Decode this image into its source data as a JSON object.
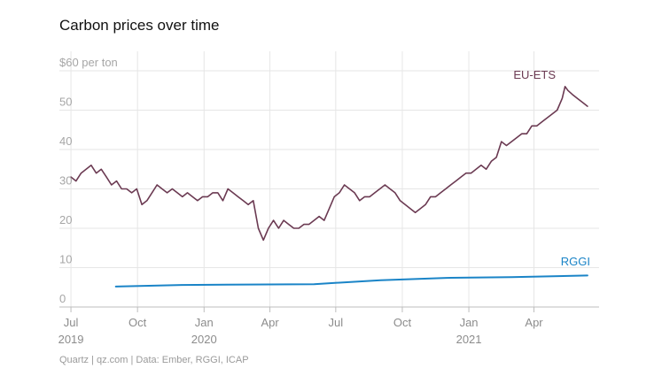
{
  "title": "Carbon prices over time",
  "footer": "Quartz | qz.com | Data: Ember, RGGI, ICAP",
  "colors": {
    "eu_ets": "#6b3a52",
    "rggi": "#1a84c7",
    "grid": "#e6e6e6"
  },
  "chart_data": {
    "type": "line",
    "title": "Carbon prices over time",
    "xlabel": "",
    "ylabel": "",
    "ylim": [
      0,
      60
    ],
    "xlim": [
      "2019-06-15",
      "2021-06-30"
    ],
    "grid": true,
    "y_ticks": [
      {
        "value": 0,
        "label": "0"
      },
      {
        "value": 10,
        "label": "10"
      },
      {
        "value": 20,
        "label": "20"
      },
      {
        "value": 30,
        "label": "30"
      },
      {
        "value": 40,
        "label": "40"
      },
      {
        "value": 50,
        "label": "50"
      },
      {
        "value": 60,
        "label": "$60 per ton"
      }
    ],
    "x_ticks": [
      {
        "date": "2019-07-01",
        "label": "Jul",
        "year": "2019"
      },
      {
        "date": "2019-10-01",
        "label": "Oct",
        "year": ""
      },
      {
        "date": "2020-01-01",
        "label": "Jan",
        "year": "2020"
      },
      {
        "date": "2020-04-01",
        "label": "Apr",
        "year": ""
      },
      {
        "date": "2020-07-01",
        "label": "Jul",
        "year": ""
      },
      {
        "date": "2020-10-01",
        "label": "Oct",
        "year": ""
      },
      {
        "date": "2021-01-01",
        "label": "Jan",
        "year": "2021"
      },
      {
        "date": "2021-04-01",
        "label": "Apr",
        "year": ""
      }
    ],
    "series": [
      {
        "name": "EU-ETS",
        "color": "#6b3a52",
        "points": [
          [
            "2019-07-01",
            33
          ],
          [
            "2019-07-08",
            32
          ],
          [
            "2019-07-15",
            34
          ],
          [
            "2019-07-22",
            35
          ],
          [
            "2019-07-29",
            36
          ],
          [
            "2019-08-05",
            34
          ],
          [
            "2019-08-12",
            35
          ],
          [
            "2019-08-19",
            33
          ],
          [
            "2019-08-26",
            31
          ],
          [
            "2019-09-02",
            32
          ],
          [
            "2019-09-09",
            30
          ],
          [
            "2019-09-16",
            30
          ],
          [
            "2019-09-23",
            29
          ],
          [
            "2019-09-30",
            30
          ],
          [
            "2019-10-07",
            26
          ],
          [
            "2019-10-14",
            27
          ],
          [
            "2019-10-21",
            29
          ],
          [
            "2019-10-28",
            31
          ],
          [
            "2019-11-04",
            30
          ],
          [
            "2019-11-11",
            29
          ],
          [
            "2019-11-18",
            30
          ],
          [
            "2019-11-25",
            29
          ],
          [
            "2019-12-02",
            28
          ],
          [
            "2019-12-09",
            29
          ],
          [
            "2019-12-16",
            28
          ],
          [
            "2019-12-23",
            27
          ],
          [
            "2019-12-30",
            28
          ],
          [
            "2020-01-06",
            28
          ],
          [
            "2020-01-13",
            29
          ],
          [
            "2020-01-20",
            29
          ],
          [
            "2020-01-27",
            27
          ],
          [
            "2020-02-03",
            30
          ],
          [
            "2020-02-10",
            29
          ],
          [
            "2020-02-17",
            28
          ],
          [
            "2020-02-24",
            27
          ],
          [
            "2020-03-02",
            26
          ],
          [
            "2020-03-09",
            27
          ],
          [
            "2020-03-16",
            20
          ],
          [
            "2020-03-23",
            17
          ],
          [
            "2020-03-30",
            20
          ],
          [
            "2020-04-06",
            22
          ],
          [
            "2020-04-13",
            20
          ],
          [
            "2020-04-20",
            22
          ],
          [
            "2020-04-27",
            21
          ],
          [
            "2020-05-04",
            20
          ],
          [
            "2020-05-11",
            20
          ],
          [
            "2020-05-18",
            21
          ],
          [
            "2020-05-25",
            21
          ],
          [
            "2020-06-01",
            22
          ],
          [
            "2020-06-08",
            23
          ],
          [
            "2020-06-15",
            22
          ],
          [
            "2020-06-22",
            25
          ],
          [
            "2020-06-29",
            28
          ],
          [
            "2020-07-06",
            29
          ],
          [
            "2020-07-13",
            31
          ],
          [
            "2020-07-20",
            30
          ],
          [
            "2020-07-27",
            29
          ],
          [
            "2020-08-03",
            27
          ],
          [
            "2020-08-10",
            28
          ],
          [
            "2020-08-17",
            28
          ],
          [
            "2020-08-24",
            29
          ],
          [
            "2020-08-31",
            30
          ],
          [
            "2020-09-07",
            31
          ],
          [
            "2020-09-14",
            30
          ],
          [
            "2020-09-21",
            29
          ],
          [
            "2020-09-28",
            27
          ],
          [
            "2020-10-05",
            26
          ],
          [
            "2020-10-12",
            25
          ],
          [
            "2020-10-19",
            24
          ],
          [
            "2020-10-26",
            25
          ],
          [
            "2020-11-02",
            26
          ],
          [
            "2020-11-09",
            28
          ],
          [
            "2020-11-16",
            28
          ],
          [
            "2020-11-23",
            29
          ],
          [
            "2020-11-30",
            30
          ],
          [
            "2020-12-07",
            31
          ],
          [
            "2020-12-14",
            32
          ],
          [
            "2020-12-21",
            33
          ],
          [
            "2020-12-28",
            34
          ],
          [
            "2021-01-04",
            34
          ],
          [
            "2021-01-11",
            35
          ],
          [
            "2021-01-18",
            36
          ],
          [
            "2021-01-25",
            35
          ],
          [
            "2021-02-01",
            37
          ],
          [
            "2021-02-08",
            38
          ],
          [
            "2021-02-15",
            42
          ],
          [
            "2021-02-22",
            41
          ],
          [
            "2021-03-01",
            42
          ],
          [
            "2021-03-08",
            43
          ],
          [
            "2021-03-15",
            44
          ],
          [
            "2021-03-22",
            44
          ],
          [
            "2021-03-29",
            46
          ],
          [
            "2021-04-05",
            46
          ],
          [
            "2021-04-12",
            47
          ],
          [
            "2021-04-19",
            48
          ],
          [
            "2021-04-26",
            49
          ],
          [
            "2021-05-03",
            50
          ],
          [
            "2021-05-10",
            53
          ],
          [
            "2021-05-14",
            56
          ],
          [
            "2021-05-18",
            55
          ],
          [
            "2021-05-24",
            54
          ],
          [
            "2021-05-31",
            53
          ],
          [
            "2021-06-07",
            52
          ],
          [
            "2021-06-14",
            51
          ]
        ]
      },
      {
        "name": "RGGI",
        "color": "#1a84c7",
        "points": [
          [
            "2019-09-01",
            5.2
          ],
          [
            "2019-12-01",
            5.6
          ],
          [
            "2020-03-01",
            5.7
          ],
          [
            "2020-06-01",
            5.8
          ],
          [
            "2020-09-01",
            6.8
          ],
          [
            "2020-12-01",
            7.4
          ],
          [
            "2021-03-01",
            7.6
          ],
          [
            "2021-06-14",
            8.0
          ]
        ]
      }
    ]
  }
}
